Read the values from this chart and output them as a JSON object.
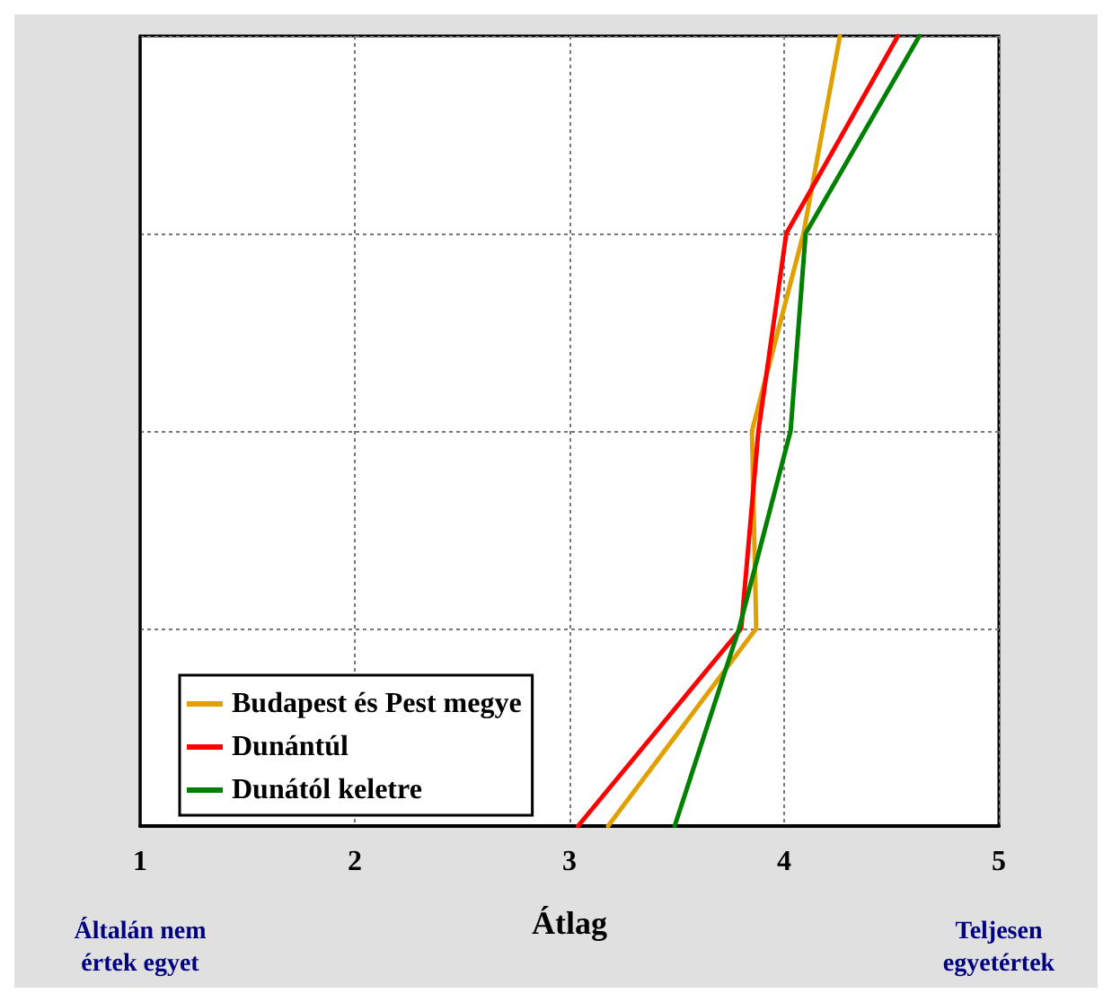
{
  "chart_data": {
    "type": "line",
    "orientation": "horizontal",
    "xlabel": "Átlag",
    "categories": [
      null,
      null,
      null,
      null,
      null
    ],
    "xlim": [
      1,
      5
    ],
    "xticks": [
      1,
      2,
      3,
      4,
      5
    ],
    "series": [
      {
        "name": "Budapest és Pest megye",
        "color": "#e0a000",
        "values": [
          4.26,
          4.09,
          3.85,
          3.87,
          3.18
        ]
      },
      {
        "name": "Dunántúl",
        "color": "#ff0000",
        "values": [
          4.53,
          4.01,
          3.88,
          3.8,
          3.04
        ]
      },
      {
        "name": "Dunától keletre",
        "color": "#008000",
        "values": [
          4.63,
          4.1,
          4.03,
          3.79,
          3.49
        ]
      }
    ],
    "annotations": [
      "Általán nem értek egyet",
      "Teljesen egyetértek"
    ],
    "grid": true,
    "legend": "bottom left",
    "marker": "none",
    "line_style": "solid"
  }
}
